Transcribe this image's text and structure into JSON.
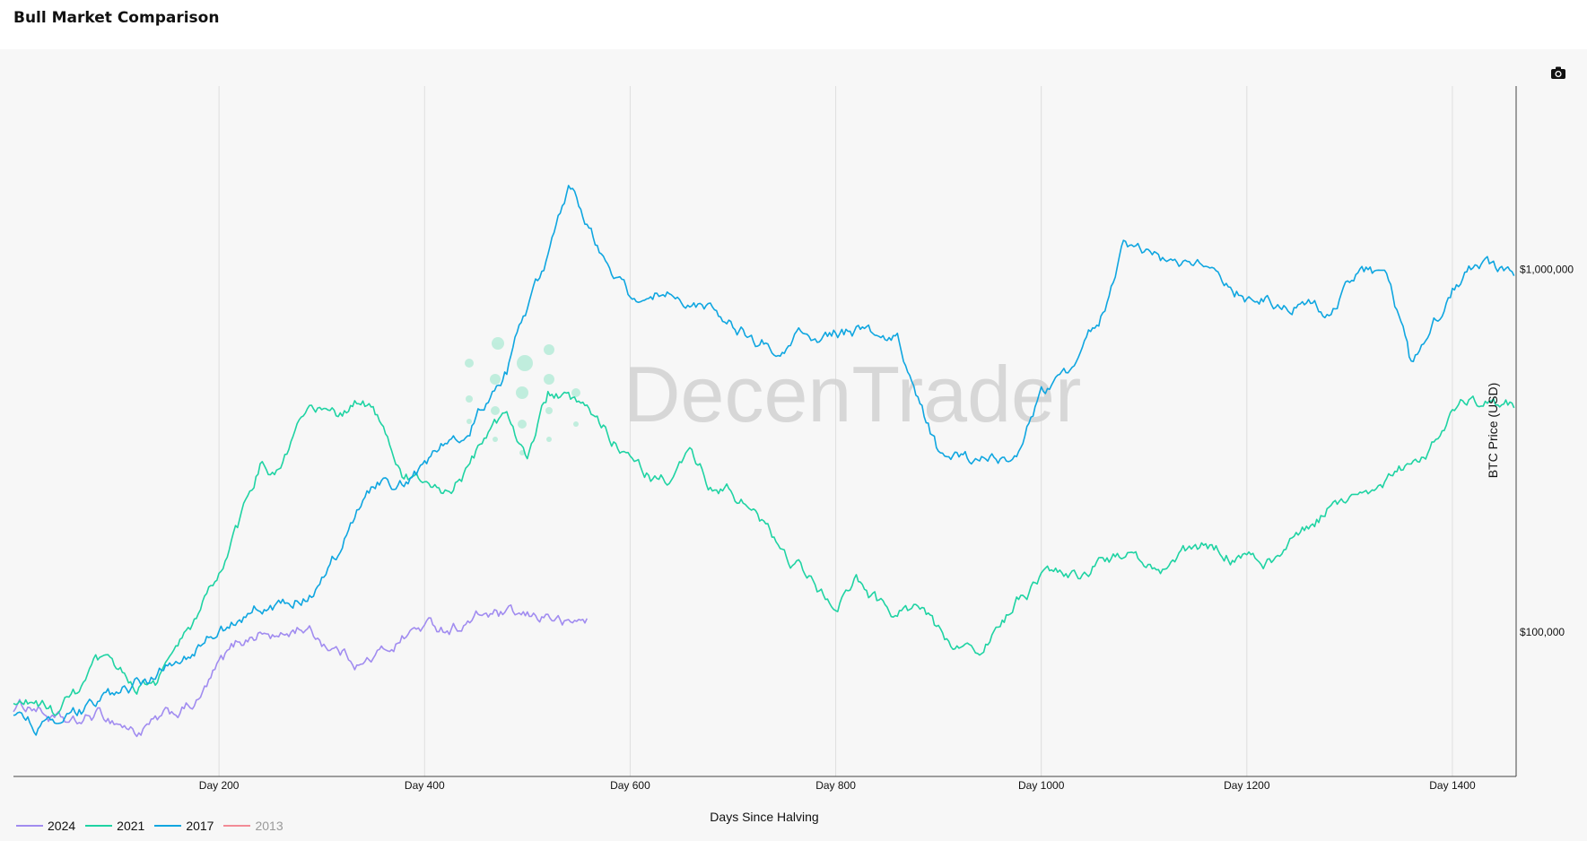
{
  "title": "Bull Market Comparison",
  "watermark": "DecenTrader",
  "toolbar": {
    "camera_icon": "camera-icon"
  },
  "chart_data": {
    "type": "line",
    "title": "Bull Market Comparison",
    "xlabel": "Days Since Halving",
    "ylabel": "BTC Price (USD)",
    "xlim": [
      0,
      1462
    ],
    "ylim": [
      40000,
      3200000
    ],
    "yscale": "log",
    "x_ticks": [
      {
        "value": 200,
        "label": "Day 200"
      },
      {
        "value": 400,
        "label": "Day 400"
      },
      {
        "value": 600,
        "label": "Day 600"
      },
      {
        "value": 800,
        "label": "Day 800"
      },
      {
        "value": 1000,
        "label": "Day 1000"
      },
      {
        "value": 1200,
        "label": "Day 1200"
      },
      {
        "value": 1400,
        "label": "Day 1400"
      }
    ],
    "y_ticks": [
      {
        "value": 100000,
        "label": "$100,000"
      },
      {
        "value": 1000000,
        "label": "$1,000,000"
      }
    ],
    "grid": "vertical",
    "legend_position": "bottom-left",
    "series": [
      {
        "name": "2024",
        "color": "#a18cf0",
        "visible": true,
        "x": [
          0,
          20,
          40,
          60,
          80,
          100,
          120,
          140,
          160,
          180,
          200,
          220,
          240,
          260,
          280,
          300,
          320,
          340,
          360,
          380,
          400,
          420,
          440,
          460,
          480,
          500,
          520,
          540,
          558
        ],
        "y": [
          62000,
          63000,
          57000,
          55000,
          59000,
          57000,
          53000,
          56000,
          60000,
          64000,
          80000,
          94000,
          100000,
          96000,
          104000,
          95000,
          88000,
          82000,
          88000,
          98000,
          104000,
          103000,
          106000,
          112000,
          110000,
          108000,
          112000,
          104000,
          109000
        ]
      },
      {
        "name": "2021",
        "color": "#1fd3a3",
        "visible": true,
        "x": [
          0,
          20,
          40,
          60,
          80,
          100,
          120,
          140,
          160,
          180,
          200,
          220,
          240,
          260,
          280,
          300,
          320,
          340,
          360,
          380,
          400,
          420,
          440,
          460,
          480,
          500,
          520,
          540,
          560,
          580,
          600,
          620,
          640,
          660,
          680,
          700,
          720,
          740,
          760,
          780,
          800,
          820,
          840,
          860,
          880,
          900,
          920,
          940,
          960,
          980,
          1000,
          1020,
          1040,
          1060,
          1080,
          1100,
          1120,
          1140,
          1160,
          1180,
          1200,
          1220,
          1240,
          1260,
          1280,
          1300,
          1320,
          1340,
          1360,
          1380,
          1400,
          1420,
          1440,
          1460
        ],
        "y": [
          62000,
          64000,
          60000,
          66000,
          80000,
          78000,
          72000,
          74000,
          90000,
          110000,
          145000,
          195000,
          290000,
          275000,
          375000,
          415000,
          390000,
          440000,
          380000,
          270000,
          255000,
          245000,
          275000,
          350000,
          400000,
          310000,
          450000,
          430000,
          390000,
          345000,
          320000,
          270000,
          270000,
          305000,
          250000,
          240000,
          215000,
          180000,
          155000,
          135000,
          118000,
          140000,
          120000,
          110000,
          117000,
          100000,
          92000,
          93000,
          100000,
          125000,
          138000,
          150000,
          140000,
          165000,
          163000,
          155000,
          150000,
          162000,
          170000,
          165000,
          157000,
          156000,
          170000,
          190000,
          220000,
          240000,
          255000,
          270000,
          290000,
          330000,
          420000,
          430000,
          420000,
          415000
        ]
      },
      {
        "name": "2017",
        "color": "#0fa6e0",
        "visible": true,
        "x": [
          0,
          20,
          40,
          60,
          80,
          100,
          120,
          140,
          160,
          180,
          200,
          220,
          240,
          260,
          280,
          300,
          320,
          340,
          360,
          380,
          400,
          420,
          440,
          460,
          480,
          500,
          520,
          540,
          560,
          580,
          600,
          620,
          640,
          660,
          680,
          700,
          720,
          740,
          760,
          780,
          800,
          820,
          840,
          860,
          880,
          900,
          920,
          940,
          960,
          980,
          1000,
          1020,
          1040,
          1060,
          1080,
          1100,
          1120,
          1140,
          1160,
          1180,
          1200,
          1220,
          1240,
          1260,
          1280,
          1300,
          1320,
          1340,
          1360,
          1380,
          1400,
          1420,
          1440,
          1460
        ],
        "y": [
          60000,
          56000,
          54000,
          58000,
          64000,
          66000,
          72000,
          76000,
          85000,
          92000,
          100000,
          108000,
          120000,
          115000,
          125000,
          140000,
          175000,
          240000,
          270000,
          255000,
          280000,
          340000,
          370000,
          430000,
          520000,
          780000,
          1050000,
          1700000,
          1350000,
          1000000,
          820000,
          900000,
          850000,
          750000,
          800000,
          700000,
          640000,
          620000,
          660000,
          640000,
          670000,
          670000,
          660000,
          640000,
          450000,
          310000,
          300000,
          290000,
          305000,
          320000,
          440000,
          480000,
          600000,
          760000,
          1150000,
          1150000,
          1050000,
          1000000,
          980000,
          920000,
          840000,
          860000,
          780000,
          820000,
          760000,
          900000,
          1000000,
          900000,
          530000,
          700000,
          880000,
          1000000,
          980000,
          960000
        ]
      },
      {
        "name": "2013",
        "color": "#f28b96",
        "visible": false,
        "x": [],
        "y": []
      }
    ]
  }
}
